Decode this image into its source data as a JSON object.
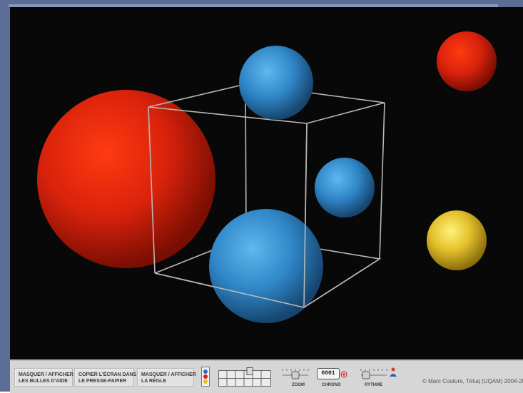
{
  "controls": {
    "help_toggle": [
      "MASQUER / AFFICHER",
      "LES BULLES D'AIDE"
    ],
    "copy_screen": [
      "COPIER L'ÉCRAN DANS",
      "LE PRESSE-PAPIER"
    ],
    "ruler_toggle": [
      "MASQUER / AFFICHER",
      "LA RÈGLE"
    ],
    "zoom_label": "ZOOM",
    "chrono_label": "CHRONO",
    "chrono_value": "0001",
    "rhythm_label": "RYTHME"
  },
  "credit": "© Marc Couture, Téluq (UQAM) 2004-2006",
  "colors": {
    "red": "#d8220c",
    "blue": "#3a8ed0",
    "yellow": "#e3c02a",
    "background": "#080808",
    "cube_lines": "#b8b8b8"
  },
  "icons": {
    "color_selector": "color-selector-icon",
    "chrono_reset": "reset-icon",
    "rhythm_person": "person-icon"
  }
}
